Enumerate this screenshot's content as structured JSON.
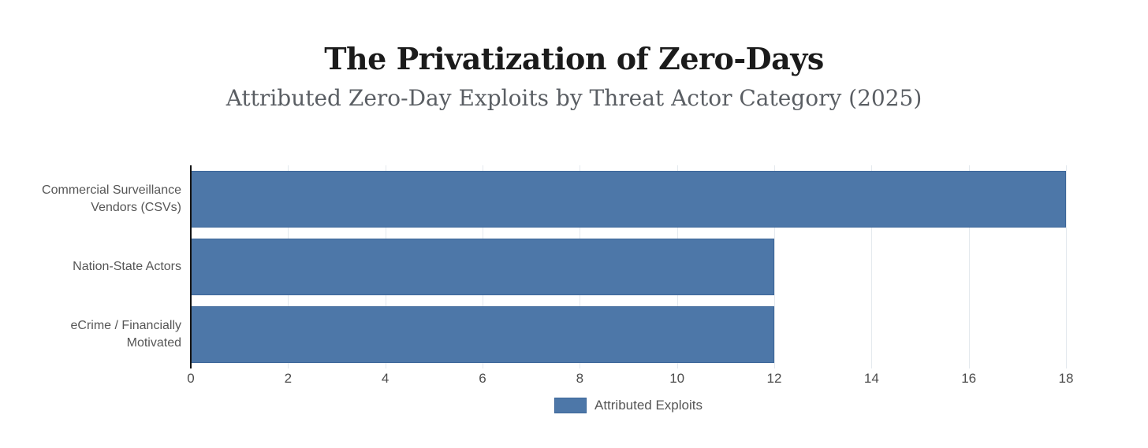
{
  "header": {
    "title": "The Privatization of Zero-Days",
    "subtitle": "Attributed Zero-Day Exploits by Threat Actor Category (2025)"
  },
  "chart_data": {
    "type": "bar",
    "orientation": "horizontal",
    "title": "The Privatization of Zero-Days",
    "subtitle": "Attributed Zero-Day Exploits by Threat Actor Category (2025)",
    "categories": [
      "Commercial Surveillance Vendors (CSVs)",
      "Nation-State Actors",
      "eCrime / Financially Motivated"
    ],
    "series": [
      {
        "name": "Attributed Exploits",
        "values": [
          18,
          12,
          12
        ]
      }
    ],
    "xlabel": "",
    "ylabel": "",
    "xlim": [
      0,
      18
    ],
    "x_ticks": [
      0,
      2,
      4,
      6,
      8,
      10,
      12,
      14,
      16,
      18
    ],
    "grid": true,
    "legend_position": "bottom-center",
    "colors": {
      "bar_fill": "#4d77a8",
      "bar_border": "#3c6699",
      "gridline": "#e4e9ee",
      "axis_line": "#151515",
      "tick_text": "#4d4d4d",
      "category_text": "#565656",
      "title_text": "#1b1b1b",
      "subtitle_text": "#5a5e63"
    }
  },
  "legend": {
    "items": [
      {
        "label": "Attributed Exploits",
        "swatch_color": "#4d77a8",
        "swatch_border": "#3c6699"
      }
    ]
  }
}
